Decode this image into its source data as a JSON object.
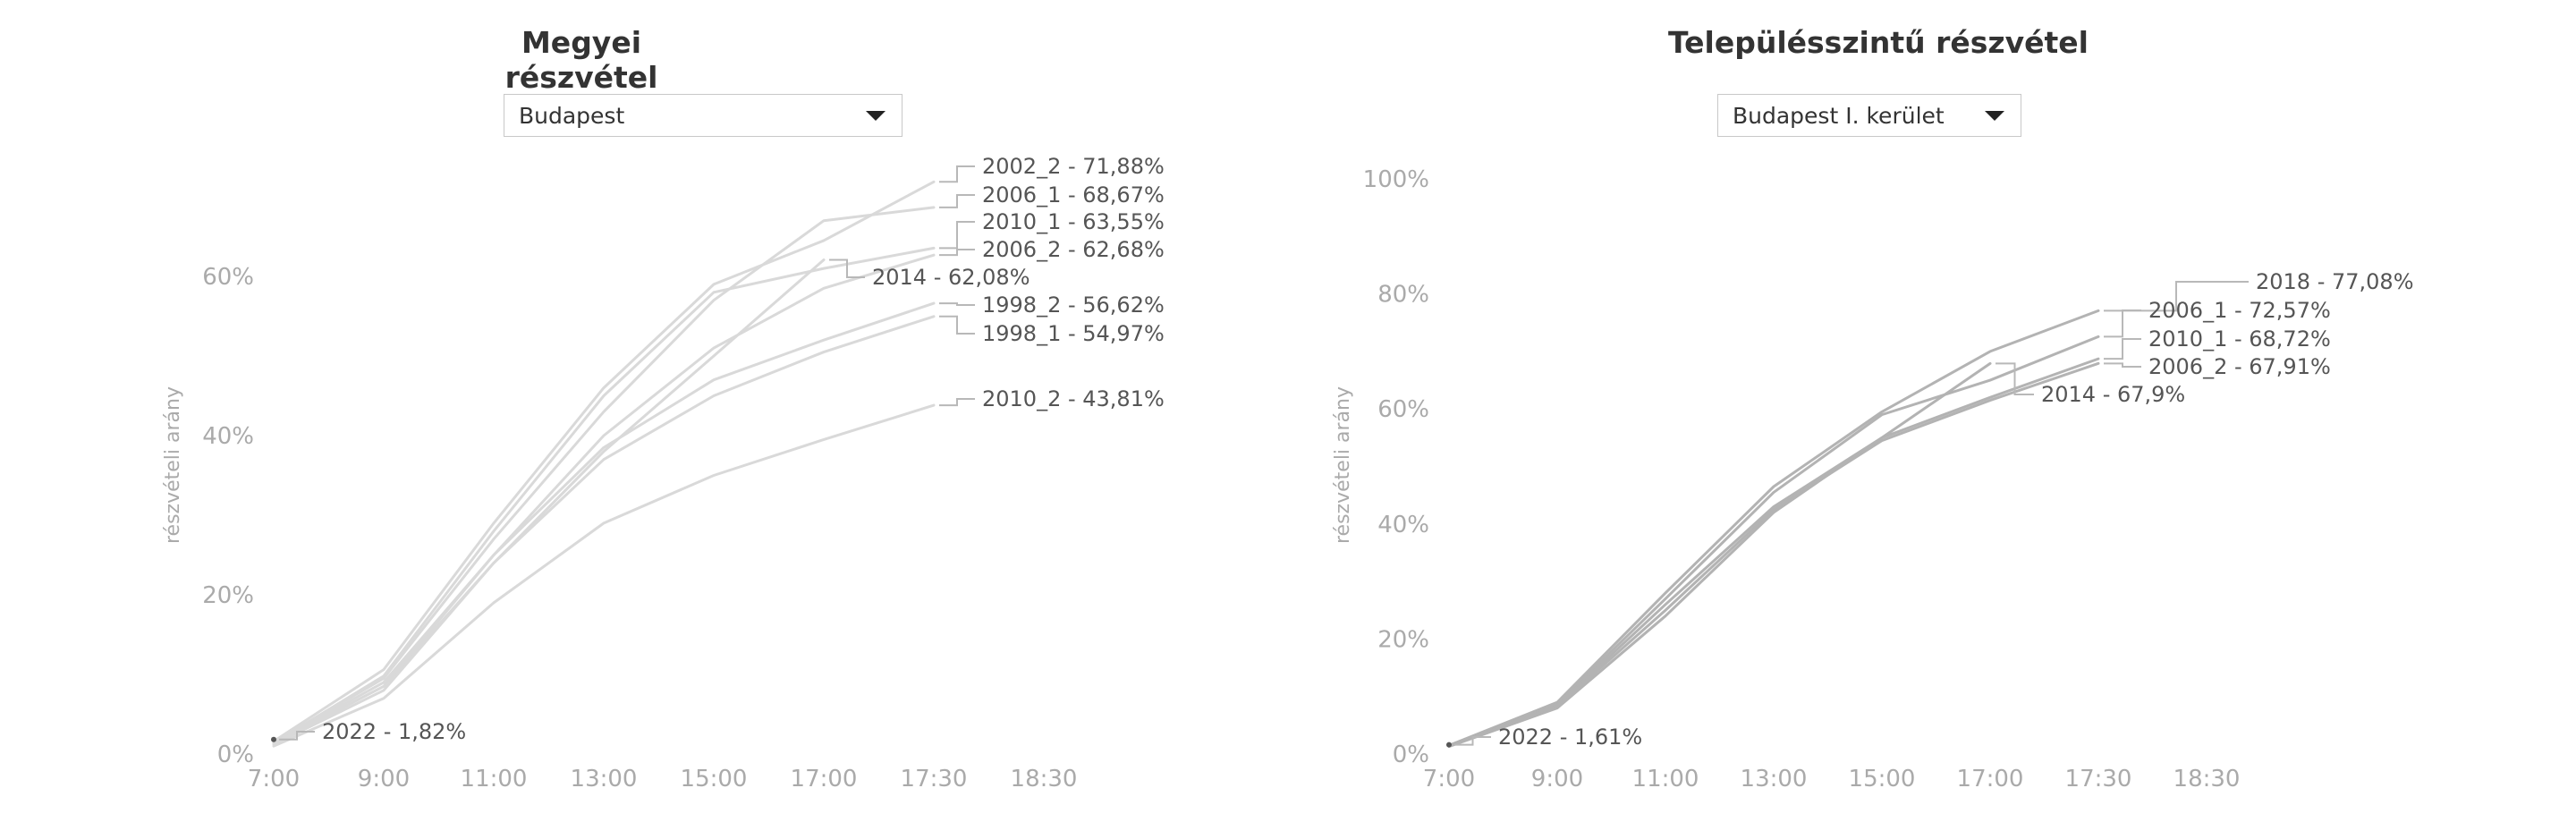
{
  "chart_data": [
    {
      "type": "line",
      "title": "Megyei részvétel",
      "dropdown": {
        "selected": "Budapest"
      },
      "ylabel": "részvételi arány",
      "x_categories": [
        "7:00",
        "9:00",
        "11:00",
        "13:00",
        "15:00",
        "17:00",
        "17:30",
        "18:30"
      ],
      "yticks": [
        "0%",
        "20%",
        "40%",
        "60%"
      ],
      "ylim": [
        0,
        62
      ],
      "grid": false,
      "series": [
        {
          "name": "2002_2",
          "label": "2002_2 - 71,88%",
          "color": "#d9d9d9",
          "points": [
            [
              0,
              1.6
            ],
            [
              1,
              10.6
            ],
            [
              2,
              29.0
            ],
            [
              3,
              46.0
            ],
            [
              4,
              59.0
            ],
            [
              5,
              64.5
            ],
            [
              6,
              71.88
            ]
          ]
        },
        {
          "name": "2006_1",
          "label": "2006_1 - 68,67%",
          "color": "#d9d9d9",
          "points": [
            [
              0,
              1.5
            ],
            [
              1,
              9.5
            ],
            [
              2,
              27.0
            ],
            [
              3,
              43.0
            ],
            [
              4,
              57.0
            ],
            [
              5,
              67.0
            ],
            [
              6,
              68.67
            ]
          ]
        },
        {
          "name": "2010_1",
          "label": "2010_1 - 63,55%",
          "color": "#d9d9d9",
          "points": [
            [
              0,
              1.4
            ],
            [
              1,
              9.8
            ],
            [
              2,
              28.0
            ],
            [
              3,
              45.0
            ],
            [
              4,
              58.0
            ],
            [
              5,
              61.0
            ],
            [
              6,
              63.55
            ]
          ]
        },
        {
          "name": "2006_2",
          "label": "2006_2 - 62,68%",
          "color": "#d9d9d9",
          "points": [
            [
              0,
              1.4
            ],
            [
              1,
              9.0
            ],
            [
              2,
              25.0
            ],
            [
              3,
              40.0
            ],
            [
              4,
              51.0
            ],
            [
              5,
              58.5
            ],
            [
              6,
              62.68
            ]
          ]
        },
        {
          "name": "2014",
          "label": "2014 - 62,08%",
          "color": "#d9d9d9",
          "points": [
            [
              0,
              1.3
            ],
            [
              1,
              8.5
            ],
            [
              2,
              24.0
            ],
            [
              3,
              38.0
            ],
            [
              4,
              50.0
            ],
            [
              5,
              62.08
            ]
          ]
        },
        {
          "name": "1998_2",
          "label": "1998_2 - 56,62%",
          "color": "#d9d9d9",
          "points": [
            [
              0,
              1.3
            ],
            [
              1,
              8.5
            ],
            [
              2,
              25.0
            ],
            [
              3,
              38.5
            ],
            [
              4,
              47.0
            ],
            [
              5,
              52.0
            ],
            [
              6,
              56.62
            ]
          ]
        },
        {
          "name": "1998_1",
          "label": "1998_1 - 54,97%",
          "color": "#d9d9d9",
          "points": [
            [
              0,
              1.2
            ],
            [
              1,
              8.0
            ],
            [
              2,
              24.0
            ],
            [
              3,
              37.0
            ],
            [
              4,
              45.0
            ],
            [
              5,
              50.5
            ],
            [
              6,
              54.97
            ]
          ]
        },
        {
          "name": "2010_2",
          "label": "2010_2 - 43,81%",
          "color": "#d9d9d9",
          "points": [
            [
              0,
              1.0
            ],
            [
              1,
              7.0
            ],
            [
              2,
              19.0
            ],
            [
              3,
              29.0
            ],
            [
              4,
              35.0
            ],
            [
              5,
              39.5
            ],
            [
              6,
              43.81
            ]
          ]
        },
        {
          "name": "2022",
          "label": "2022 - 1,82%",
          "color": "#555555",
          "points": [
            [
              0,
              1.82
            ]
          ]
        }
      ]
    },
    {
      "type": "line",
      "title": "Településszintű részvétel",
      "dropdown": {
        "selected": "Budapest I. kerület"
      },
      "ylabel": "részvételi arány",
      "x_categories": [
        "7:00",
        "9:00",
        "11:00",
        "13:00",
        "15:00",
        "17:00",
        "17:30",
        "18:30"
      ],
      "yticks": [
        "0%",
        "20%",
        "40%",
        "60%",
        "80%",
        "100%"
      ],
      "ylim": [
        0,
        100
      ],
      "grid": false,
      "series": [
        {
          "name": "2018",
          "label": "2018 - 77,08%",
          "color": "#b3b3b3",
          "points": [
            [
              0,
              1.5
            ],
            [
              1,
              9.0
            ],
            [
              2,
              28.0
            ],
            [
              3,
              46.5
            ],
            [
              4,
              59.5
            ],
            [
              5,
              70.0
            ],
            [
              6,
              77.08
            ]
          ]
        },
        {
          "name": "2006_1",
          "label": "2006_1 - 72,57%",
          "color": "#b3b3b3",
          "points": [
            [
              0,
              1.5
            ],
            [
              1,
              8.7
            ],
            [
              2,
              27.0
            ],
            [
              3,
              45.5
            ],
            [
              4,
              59.0
            ],
            [
              5,
              65.0
            ],
            [
              6,
              72.57
            ]
          ]
        },
        {
          "name": "2010_1",
          "label": "2010_1 - 68,72%",
          "color": "#b3b3b3",
          "points": [
            [
              0,
              1.4
            ],
            [
              1,
              8.5
            ],
            [
              2,
              26.0
            ],
            [
              3,
              43.0
            ],
            [
              4,
              55.0
            ],
            [
              5,
              62.0
            ],
            [
              6,
              68.72
            ]
          ]
        },
        {
          "name": "2006_2",
          "label": "2006_2 - 67,91%",
          "color": "#b3b3b3",
          "points": [
            [
              0,
              1.4
            ],
            [
              1,
              8.3
            ],
            [
              2,
              25.0
            ],
            [
              3,
              42.5
            ],
            [
              4,
              54.5
            ],
            [
              5,
              61.5
            ],
            [
              6,
              67.91
            ]
          ]
        },
        {
          "name": "2014",
          "label": "2014 - 67,9%",
          "color": "#b3b3b3",
          "points": [
            [
              0,
              1.3
            ],
            [
              1,
              8.0
            ],
            [
              2,
              24.0
            ],
            [
              3,
              42.0
            ],
            [
              4,
              55.0
            ],
            [
              5,
              67.9
            ]
          ]
        },
        {
          "name": "2022",
          "label": "2022 - 1,61%",
          "color": "#555555",
          "points": [
            [
              0,
              1.61
            ]
          ]
        }
      ]
    }
  ]
}
